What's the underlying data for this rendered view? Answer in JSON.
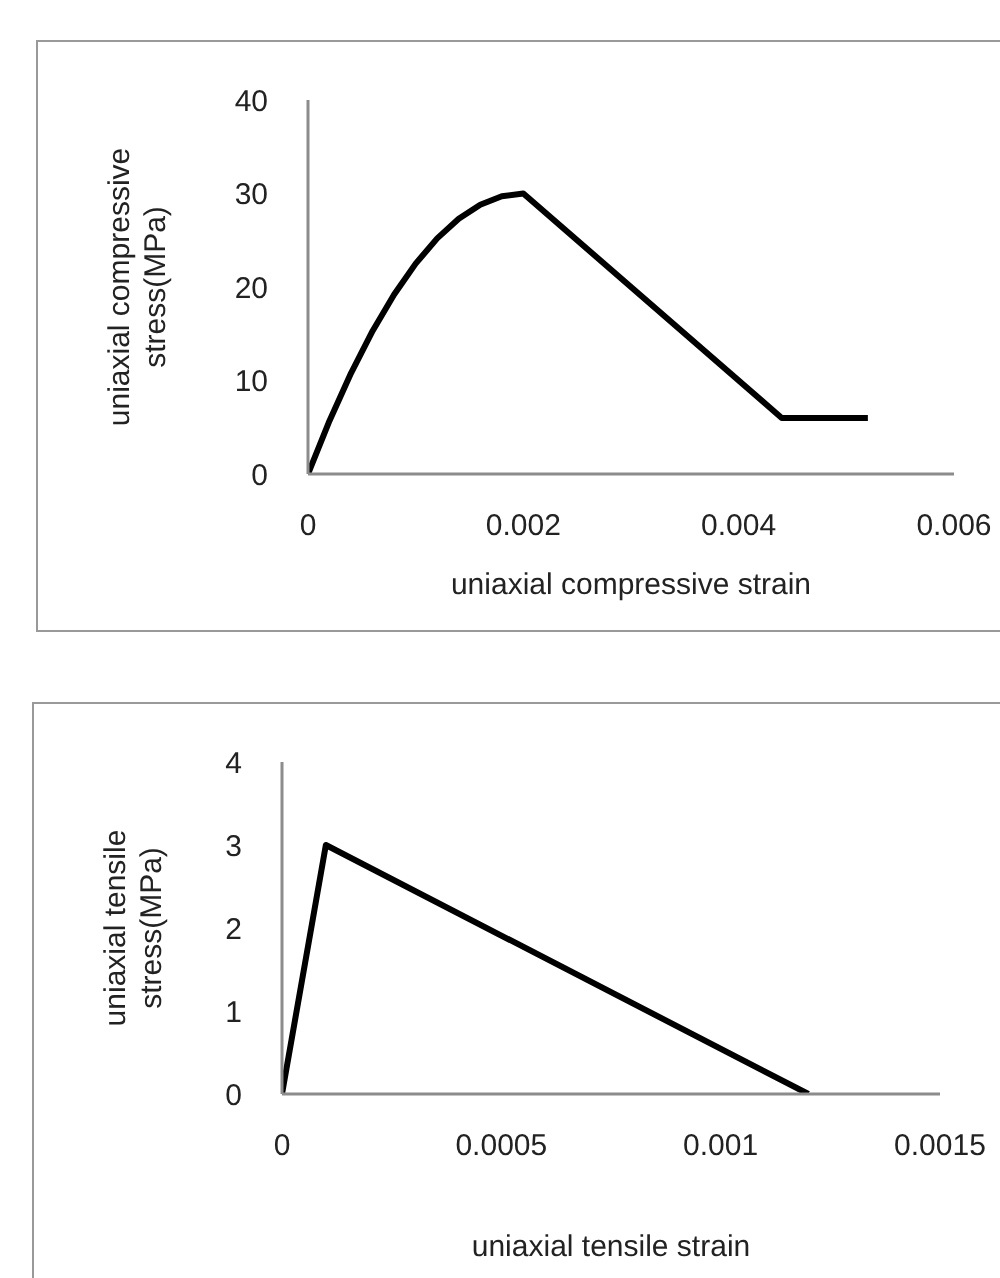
{
  "chart_data": [
    {
      "type": "line",
      "xlabel": "uniaxial compressive strain",
      "ylabel": "uniaxial compressive stress(MPa)",
      "x": [
        0,
        0.0002,
        0.0004,
        0.0006,
        0.0008,
        0.001,
        0.0012,
        0.0014,
        0.0016,
        0.0018,
        0.002,
        0.0044,
        0.0052
      ],
      "series": [
        {
          "color": "#000000",
          "values": [
            0,
            5.7,
            10.8,
            15.3,
            19.2,
            22.5,
            25.2,
            27.3,
            28.8,
            29.7,
            30,
            6,
            6
          ]
        }
      ],
      "xlim": [
        0,
        0.006
      ],
      "xticks": [
        0,
        0.002,
        0.004,
        0.006
      ],
      "ylim": [
        0,
        40
      ],
      "yticks": [
        0,
        10,
        20,
        30,
        40
      ],
      "grid": false,
      "legend": false,
      "marker": "none",
      "line_style": "solid"
    },
    {
      "type": "line",
      "xlabel": "uniaxial tensile strain",
      "ylabel": "uniaxial tensile stress(MPa)",
      "x": [
        0,
        0.0001,
        0.0012
      ],
      "series": [
        {
          "color": "#000000",
          "values": [
            0,
            3,
            0
          ]
        }
      ],
      "xlim": [
        0,
        0.0015
      ],
      "xticks": [
        0,
        0.0005,
        0.001,
        0.0015
      ],
      "ylim": [
        0,
        4
      ],
      "yticks": [
        0,
        1,
        2,
        3,
        4
      ],
      "grid": false,
      "legend": false,
      "marker": "none",
      "line_style": "solid"
    }
  ]
}
